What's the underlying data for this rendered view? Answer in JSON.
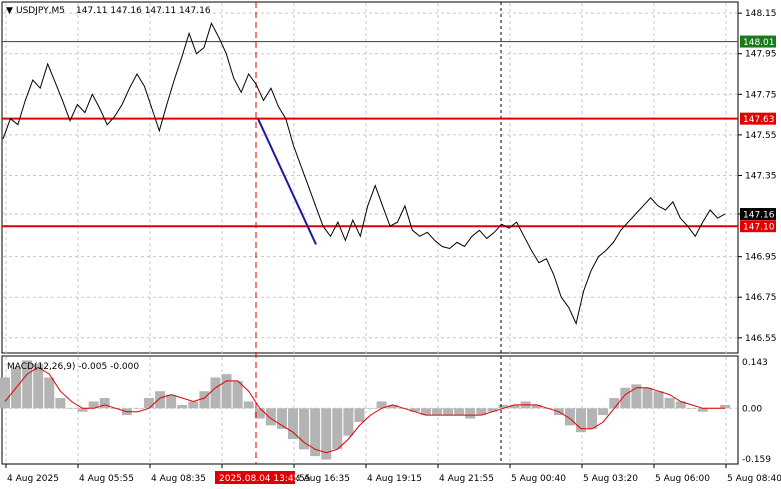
{
  "header": {
    "symbol": "USDJPY,M5",
    "ohlc": "147.11 147.16 147.11 147.16"
  },
  "macd": {
    "label": "MACD(12,26,9) -0.005 -0.000"
  },
  "colors": {
    "price": "#000000",
    "red_line": "#e00000",
    "green_line": "#1a7a1a",
    "trend": "#1a1aa0",
    "grid": "#c8c8c8",
    "macd_hist": "#b4b4b4",
    "signal": "#e00000",
    "badge_red": "#e00000",
    "badge_green": "#1a7a1a",
    "badge_dark": "#000000"
  },
  "chart_data": {
    "type": "line",
    "symbol": "USDJPY",
    "timeframe": "M5",
    "price_axis": {
      "ylim": [
        146.48,
        148.2
      ],
      "ticks": [
        "148.15",
        "147.95",
        "147.75",
        "147.55",
        "147.35",
        "147.16",
        "146.95",
        "146.75",
        "146.55"
      ]
    },
    "time_axis": {
      "ticks": [
        "4 Aug 2025",
        "4 Aug 05:55",
        "4 Aug 08:35",
        "4 Aug",
        "4 Aug 16:35",
        "4 Aug 19:15",
        "4 Aug 21:55",
        "5 Aug 00:40",
        "5 Aug 03:20",
        "5 Aug 06:00",
        "5 Aug 08:40"
      ],
      "crosshair_label": "2025.08.04 13:45",
      "crosshair_tail": ":55"
    },
    "levels": [
      {
        "value": 148.01,
        "label": "148.01",
        "color": "green"
      },
      {
        "value": 147.63,
        "label": "147.63",
        "color": "red"
      },
      {
        "value": 147.1,
        "label": "147.10",
        "color": "red"
      }
    ],
    "current_price": {
      "value": 147.16,
      "label": "147.16"
    },
    "trend_line": {
      "from": 147.63,
      "to": 147.01
    },
    "price_series": [
      147.53,
      147.63,
      147.6,
      147.72,
      147.82,
      147.78,
      147.9,
      147.81,
      147.72,
      147.62,
      147.7,
      147.66,
      147.75,
      147.68,
      147.6,
      147.64,
      147.7,
      147.78,
      147.85,
      147.79,
      147.68,
      147.57,
      147.7,
      147.82,
      147.93,
      148.05,
      147.95,
      147.98,
      148.1,
      148.03,
      147.95,
      147.83,
      147.76,
      147.85,
      147.8,
      147.72,
      147.78,
      147.69,
      147.63,
      147.5,
      147.4,
      147.3,
      147.2,
      147.1,
      147.05,
      147.12,
      147.03,
      147.13,
      147.05,
      147.2,
      147.3,
      147.2,
      147.1,
      147.12,
      147.2,
      147.08,
      147.05,
      147.07,
      147.03,
      147.0,
      146.99,
      147.02,
      147.0,
      147.05,
      147.08,
      147.04,
      147.07,
      147.11,
      147.09,
      147.12,
      147.05,
      146.98,
      146.92,
      146.94,
      146.86,
      146.75,
      146.7,
      146.62,
      146.78,
      146.88,
      146.95,
      146.98,
      147.02,
      147.08,
      147.12,
      147.16,
      147.2,
      147.24,
      147.2,
      147.18,
      147.22,
      147.14,
      147.1,
      147.05,
      147.12,
      147.18,
      147.14,
      147.16
    ],
    "macd": {
      "ylim": [
        -0.16,
        0.15
      ],
      "ticks": [
        "0.143",
        "0.00",
        "-0.159"
      ],
      "histogram": [
        0.09,
        0.12,
        0.14,
        0.13,
        0.09,
        0.03,
        0.0,
        -0.01,
        0.02,
        0.03,
        0.0,
        -0.02,
        0.0,
        0.03,
        0.05,
        0.04,
        0.01,
        0.02,
        0.05,
        0.09,
        0.1,
        0.08,
        0.02,
        -0.03,
        -0.05,
        -0.06,
        -0.09,
        -0.12,
        -0.14,
        -0.15,
        -0.12,
        -0.08,
        -0.04,
        0.0,
        0.02,
        0.01,
        0.0,
        -0.01,
        -0.02,
        -0.02,
        -0.02,
        -0.02,
        -0.03,
        -0.02,
        -0.01,
        0.01,
        0.01,
        0.02,
        0.01,
        0.0,
        -0.02,
        -0.05,
        -0.07,
        -0.06,
        -0.02,
        0.03,
        0.06,
        0.07,
        0.06,
        0.05,
        0.03,
        0.02,
        0.0,
        -0.01,
        0.0,
        0.01
      ],
      "signal": [
        0.02,
        0.06,
        0.1,
        0.12,
        0.1,
        0.05,
        0.02,
        0.0,
        0.0,
        0.01,
        0.0,
        -0.01,
        -0.01,
        0.0,
        0.03,
        0.04,
        0.03,
        0.02,
        0.03,
        0.06,
        0.08,
        0.08,
        0.05,
        0.0,
        -0.03,
        -0.05,
        -0.07,
        -0.1,
        -0.12,
        -0.13,
        -0.12,
        -0.09,
        -0.05,
        -0.02,
        0.0,
        0.01,
        0.0,
        -0.01,
        -0.02,
        -0.02,
        -0.02,
        -0.02,
        -0.02,
        -0.02,
        -0.01,
        0.0,
        0.01,
        0.01,
        0.01,
        0.0,
        -0.01,
        -0.03,
        -0.06,
        -0.06,
        -0.04,
        0.0,
        0.04,
        0.06,
        0.06,
        0.05,
        0.04,
        0.02,
        0.01,
        0.0,
        0.0,
        0.0
      ]
    }
  }
}
